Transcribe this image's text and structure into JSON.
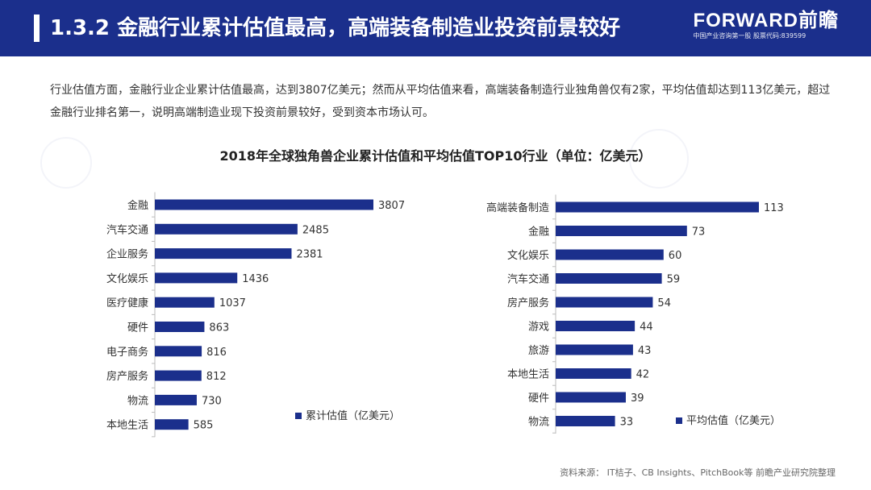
{
  "header": {
    "title": "1.3.2 金融行业累计估值最高，高端装备制造业投资前景较好",
    "logo_main": "FORWARD前瞻",
    "logo_sub": "中国产业咨询第一股 股票代码:839599"
  },
  "intro": {
    "text": "行业估值方面，金融行业企业累计估值最高，达到3807亿美元；然而从平均估值来看，高端装备制造行业独角兽仅有2家，平均估值却达到113亿美元，超过金融行业排名第一，说明高端制造业现下投资前景较好，受到资本市场认可。"
  },
  "chart_title": "2018年全球独角兽企业累计估值和平均估值TOP10行业（单位：亿美元）",
  "source": "资料来源：   IT桔子、CB Insights、PitchBook等  前瞻产业研究院整理",
  "colors": {
    "bar": "#1b2f8c",
    "header": "#1b2f8c",
    "axis": "#bbbbbb"
  },
  "chart_data": [
    {
      "type": "bar",
      "orientation": "horizontal",
      "categories": [
        "金融",
        "汽车交通",
        "企业服务",
        "文化娱乐",
        "医疗健康",
        "硬件",
        "电子商务",
        "房产服务",
        "物流",
        "本地生活"
      ],
      "series": [
        {
          "name": "累计估值（亿美元）",
          "values": [
            3807,
            2485,
            2381,
            1436,
            1037,
            863,
            816,
            812,
            730,
            585
          ]
        }
      ],
      "data_labels": true,
      "legend": "bottom-right"
    },
    {
      "type": "bar",
      "orientation": "horizontal",
      "categories": [
        "高端装备制造",
        "金融",
        "文化娱乐",
        "汽车交通",
        "房产服务",
        "游戏",
        "旅游",
        "本地生活",
        "硬件",
        "物流"
      ],
      "series": [
        {
          "name": "平均估值（亿美元）",
          "values": [
            113,
            73,
            60,
            59,
            54,
            44,
            43,
            42,
            39,
            33
          ]
        }
      ],
      "data_labels": true,
      "legend": "bottom-right"
    }
  ]
}
